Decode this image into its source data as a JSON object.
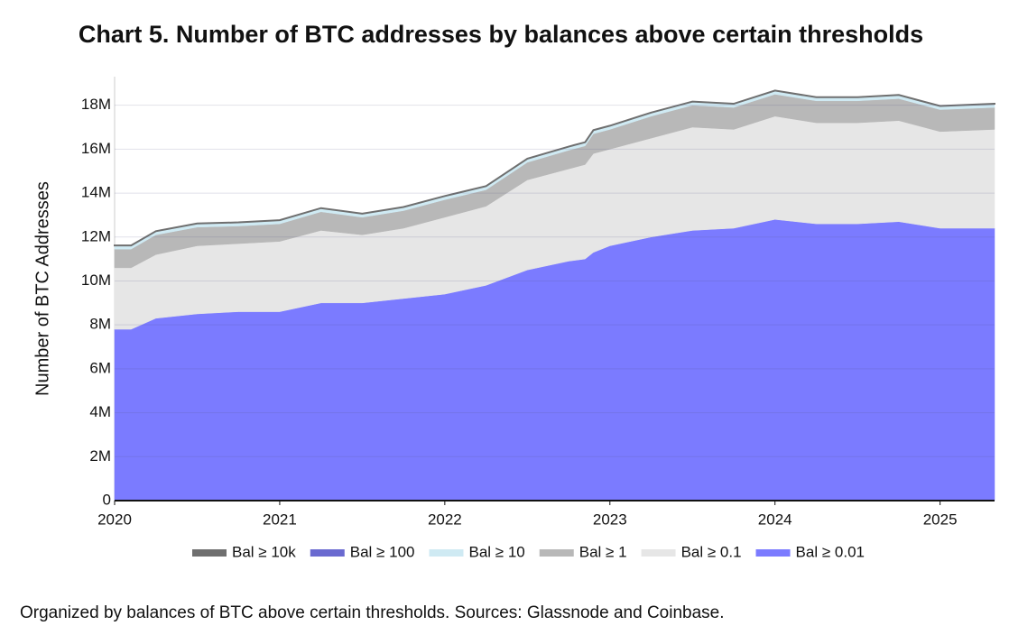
{
  "chart_data": {
    "type": "stacked-area",
    "title": "Chart 5. Number of BTC addresses by balances above certain thresholds",
    "y_label": "Number of BTC Addresses",
    "caption": "Organized by balances of BTC above certain thresholds. Sources: Glassnode and Coinbase.",
    "x": [
      2020.0,
      2020.1,
      2020.25,
      2020.5,
      2020.75,
      2021.0,
      2021.25,
      2021.5,
      2021.75,
      2022.0,
      2022.25,
      2022.5,
      2022.75,
      2022.85,
      2022.9,
      2023.0,
      2023.25,
      2023.5,
      2023.75,
      2024.0,
      2024.25,
      2024.5,
      2024.75,
      2025.0,
      2025.33
    ],
    "xlim": [
      2020,
      2025.33
    ],
    "xticks": [
      2020,
      2021,
      2022,
      2023,
      2024,
      2025
    ],
    "ylim": [
      0,
      19300000
    ],
    "yticks": [
      {
        "value": 0,
        "label": "0"
      },
      {
        "value": 2000000,
        "label": "2M"
      },
      {
        "value": 4000000,
        "label": "4M"
      },
      {
        "value": 6000000,
        "label": "6M"
      },
      {
        "value": 8000000,
        "label": "8M"
      },
      {
        "value": 10000000,
        "label": "10M"
      },
      {
        "value": 12000000,
        "label": "12M"
      },
      {
        "value": 14000000,
        "label": "14M"
      },
      {
        "value": 16000000,
        "label": "16M"
      },
      {
        "value": 18000000,
        "label": "18M"
      }
    ],
    "grid": true,
    "series": [
      {
        "name": "Bal ≥ 10k",
        "color": "#6f6f6f",
        "values": [
          100,
          100,
          100,
          100,
          100,
          100,
          100,
          100,
          100,
          100,
          100,
          100,
          100,
          100,
          100,
          100,
          100,
          100,
          100,
          100,
          100,
          100,
          100,
          100,
          100
        ]
      },
      {
        "name": "Bal ≥ 100",
        "color": "#6a6ad0",
        "values": [
          16000,
          16000,
          16000,
          16000,
          16000,
          16000,
          16000,
          16000,
          16000,
          16000,
          16000,
          16000,
          16000,
          16000,
          16000,
          16000,
          16000,
          16000,
          16000,
          16000,
          16000,
          16000,
          16000,
          16000,
          16000
        ]
      },
      {
        "name": "Bal ≥ 10",
        "color": "#cfeaf3",
        "values": [
          150000,
          150000,
          150000,
          150000,
          150000,
          150000,
          150000,
          150000,
          150000,
          150000,
          150000,
          150000,
          150000,
          150000,
          150000,
          150000,
          150000,
          150000,
          150000,
          150000,
          150000,
          150000,
          150000,
          150000,
          150000
        ]
      },
      {
        "name": "Bal ≥ 1",
        "color": "#b8b8b8",
        "values": [
          850000,
          850000,
          900000,
          850000,
          800000,
          800000,
          850000,
          800000,
          800000,
          800000,
          750000,
          800000,
          850000,
          850000,
          900000,
          900000,
          1000000,
          1000000,
          1000000,
          1000000,
          1000000,
          1000000,
          1000000,
          1000000,
          1000000
        ]
      },
      {
        "name": "Bal ≥ 0.1",
        "color": "#e6e6e6",
        "values": [
          2800000,
          2800000,
          2900000,
          3100000,
          3100000,
          3200000,
          3300000,
          3100000,
          3200000,
          3500000,
          3600000,
          4100000,
          4200000,
          4300000,
          4500000,
          4400000,
          4500000,
          4700000,
          4500000,
          4700000,
          4600000,
          4600000,
          4600000,
          4400000,
          4500000
        ]
      },
      {
        "name": "Bal ≥ 0.01",
        "color": "#7b7bff",
        "values": [
          7800000,
          7800000,
          8300000,
          8500000,
          8600000,
          8600000,
          9000000,
          9000000,
          9200000,
          9400000,
          9800000,
          10500000,
          10900000,
          11000000,
          11300000,
          11600000,
          12000000,
          12300000,
          12400000,
          12800000,
          12600000,
          12600000,
          12700000,
          12400000,
          12400000
        ]
      }
    ]
  }
}
